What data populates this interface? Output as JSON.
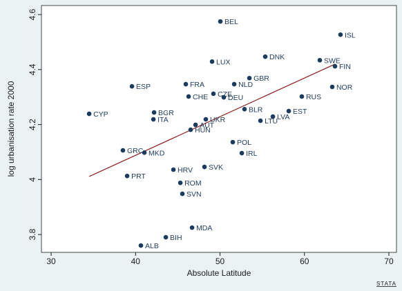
{
  "chart_data": {
    "type": "scatter",
    "x_label": "Absolute Latitude",
    "y_label": "log urbanisation rate 2000",
    "logo": "STATA",
    "labels": [
      "BEL",
      "ISL",
      "LUX",
      "DNK",
      "SWE",
      "FIN",
      "GBR",
      "NLD",
      "FRA",
      "ESP",
      "NOR",
      "CZE",
      "CHE",
      "DEU",
      "RUS",
      "BLR",
      "EST",
      "BGR",
      "CYP",
      "LVA",
      "ITA",
      "UKR",
      "LTU",
      "AUT",
      "HUN",
      "POL",
      "GRC",
      "MKD",
      "IRL",
      "HRV",
      "SVK",
      "PRT",
      "ROM",
      "SVN",
      "MDA",
      "BIH",
      "ALB"
    ],
    "x": [
      50.04,
      64.27,
      49.06,
      55.36,
      61.82,
      63.62,
      53.48,
      51.68,
      45.95,
      39.57,
      63.29,
      49.22,
      46.28,
      50.45,
      59.69,
      52.9,
      58.14,
      42.19,
      34.5,
      56.26,
      42.11,
      48.32,
      54.79,
      47.1,
      46.52,
      51.51,
      38.5,
      41.04,
      52.58,
      44.48,
      48.16,
      39.0,
      45.3,
      45.54,
      46.69,
      43.58,
      40.63
    ],
    "values": [
      4.575,
      4.527,
      4.429,
      4.447,
      4.434,
      4.412,
      4.369,
      4.347,
      4.347,
      4.339,
      4.337,
      4.312,
      4.302,
      4.299,
      4.302,
      4.256,
      4.249,
      4.244,
      4.239,
      4.229,
      4.219,
      4.219,
      4.214,
      4.199,
      4.181,
      4.136,
      4.106,
      4.098,
      4.096,
      4.036,
      4.046,
      4.013,
      3.988,
      3.948,
      3.825,
      3.79,
      3.76
    ],
    "color": "#1a3a5e",
    "fit_line": {
      "x": [
        34.5,
        63.62
      ],
      "values": [
        4.011,
        4.42
      ],
      "color": "#8b1a1a"
    },
    "xlim": [
      28.85,
      70.9
    ],
    "ylim": [
      3.735,
      4.633
    ],
    "xticks": [
      30,
      40,
      50,
      60,
      70
    ],
    "yticks": [
      3.8,
      4,
      4.2,
      4.4,
      4.6
    ]
  }
}
